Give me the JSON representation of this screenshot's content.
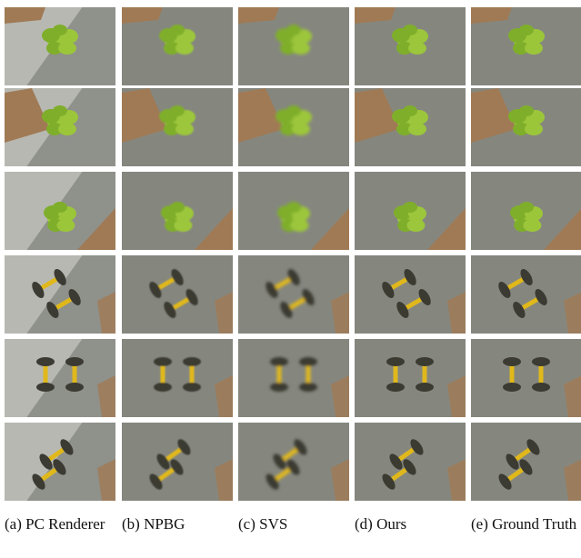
{
  "figure": {
    "captions": [
      "(a) PC Ren­derer",
      "(b) NPBG",
      "(c) SVS",
      "(d) Ours",
      "(e) Ground Truth"
    ]
  }
}
